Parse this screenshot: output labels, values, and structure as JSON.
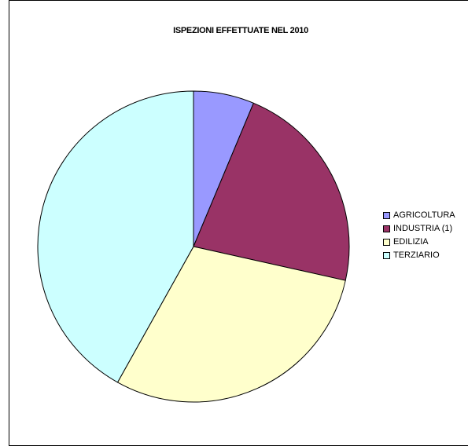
{
  "chart_data": {
    "type": "pie",
    "title": "ISPEZIONI EFFETTUATE NEL 2010",
    "categories": [
      "AGRICOLTURA",
      "INDUSTRIA (1)",
      "EDILIZIA",
      "TERZIARIO"
    ],
    "values": [
      6.3,
      22.2,
      29.6,
      41.9
    ],
    "colors": [
      "#9999ff",
      "#993366",
      "#ffffcc",
      "#ccffff"
    ],
    "legend_position": "right"
  }
}
